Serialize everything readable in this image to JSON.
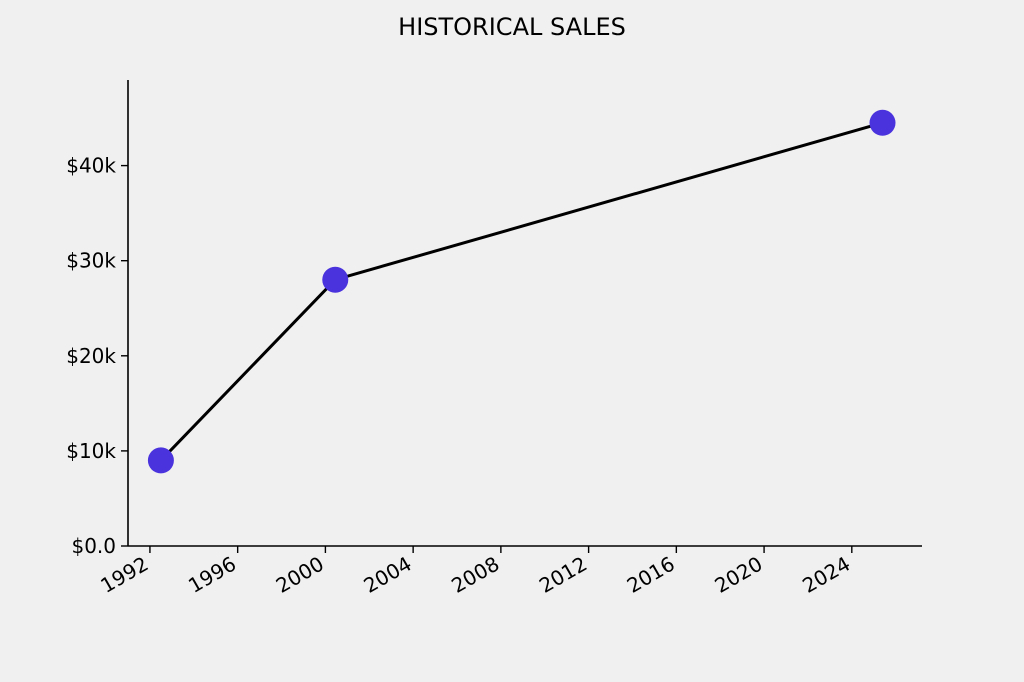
{
  "chart_data": {
    "type": "line",
    "title": "HISTORICAL SALES",
    "xlabel": "",
    "ylabel": "",
    "x_ticks": [
      1992,
      1996,
      2000,
      2004,
      2008,
      2012,
      2016,
      2020,
      2024
    ],
    "x_tick_labels": [
      "1992",
      "1996",
      "2000",
      "2004",
      "2008",
      "2012",
      "2016",
      "2020",
      "2024"
    ],
    "y_ticks": [
      0,
      10000,
      20000,
      30000,
      40000
    ],
    "y_tick_labels": [
      "$0.0",
      "$10k",
      "$20k",
      "$30k",
      "$40k"
    ],
    "xlim": [
      1991,
      2027.2
    ],
    "ylim": [
      0,
      49000
    ],
    "grid": false,
    "series": [
      {
        "x": [
          "1992-07",
          "2000-06",
          "2025-06"
        ],
        "x_decimal": [
          1992.5,
          2000.45,
          2025.4
        ],
        "values": [
          9000,
          28000,
          44500
        ],
        "line_color": "#000000",
        "marker_color": "#4a33dd"
      }
    ]
  }
}
